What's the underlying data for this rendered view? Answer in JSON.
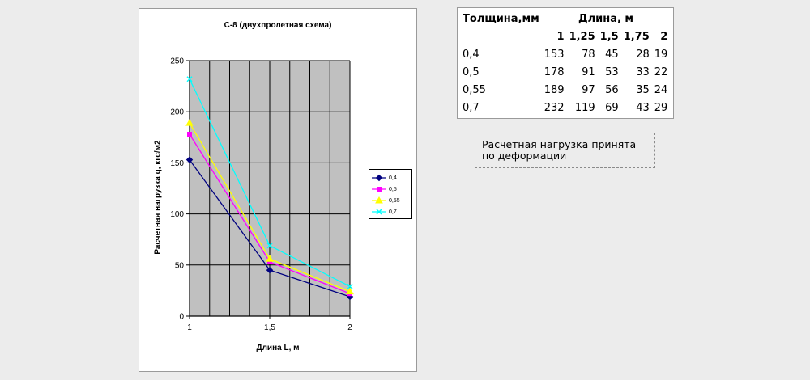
{
  "chart_data": {
    "type": "line",
    "title": "С-8 (двухпролетная схема)",
    "xlabel": "Длина L, м",
    "ylabel": "Расчетная нагрузка q, кгс/м2",
    "x": [
      1,
      1.5,
      2
    ],
    "x_tick_labels": [
      "1",
      "1,5",
      "2"
    ],
    "ylim": [
      0,
      250
    ],
    "y_ticks": [
      0,
      50,
      100,
      150,
      200,
      250
    ],
    "grid": true,
    "legend_position": "right",
    "series": [
      {
        "name": "0,4",
        "values": [
          153,
          45,
          19
        ],
        "color": "#000080",
        "marker": "diamond"
      },
      {
        "name": "0,5",
        "values": [
          178,
          53,
          22
        ],
        "color": "#ff00ff",
        "marker": "square"
      },
      {
        "name": "0,55",
        "values": [
          189,
          56,
          24
        ],
        "color": "#ffff00",
        "marker": "triangle"
      },
      {
        "name": "0,7",
        "values": [
          232,
          69,
          29
        ],
        "color": "#00ffff",
        "marker": "x"
      }
    ]
  },
  "table": {
    "header_thickness": "Толщина,мм",
    "header_length": "Длина, м",
    "lengths": [
      "1",
      "1,25",
      "1,5",
      "1,75",
      "2"
    ],
    "rows": [
      {
        "thickness": "0,4",
        "values": [
          "153",
          "78",
          "45",
          "28",
          "19"
        ]
      },
      {
        "thickness": "0,5",
        "values": [
          "178",
          "91",
          "53",
          "33",
          "22"
        ]
      },
      {
        "thickness": "0,55",
        "values": [
          "189",
          "97",
          "56",
          "35",
          "24"
        ]
      },
      {
        "thickness": "0,7",
        "values": [
          "232",
          "119",
          "69",
          "43",
          "29"
        ]
      }
    ]
  },
  "note": {
    "line1": "Расчетная нагрузка принята",
    "line2": "по деформации"
  }
}
